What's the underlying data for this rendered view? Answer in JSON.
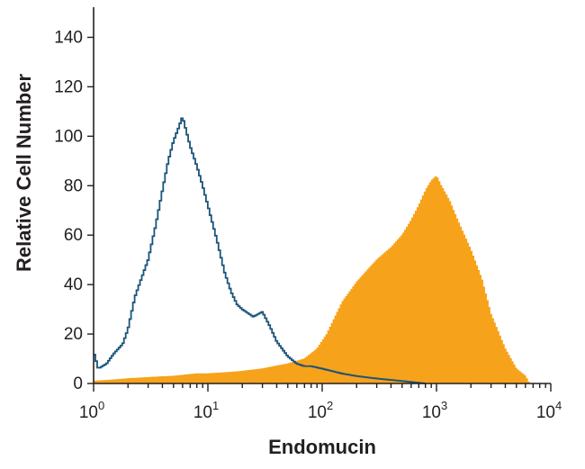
{
  "chart_data": {
    "type": "area",
    "xlabel": "Endomucin",
    "ylabel": "Relative Cell Number",
    "x_scale": "log",
    "xlim": [
      1,
      10000
    ],
    "ylim": [
      0,
      150
    ],
    "x_ticks": [
      {
        "value": 1,
        "base": "10",
        "exp": "0"
      },
      {
        "value": 10,
        "base": "10",
        "exp": "1"
      },
      {
        "value": 100,
        "base": "10",
        "exp": "2"
      },
      {
        "value": 1000,
        "base": "10",
        "exp": "3"
      },
      {
        "value": 10000,
        "base": "10",
        "exp": "4"
      }
    ],
    "y_ticks": [
      {
        "value": 0,
        "label": "0"
      },
      {
        "value": 20,
        "label": "20"
      },
      {
        "value": 40,
        "label": "40"
      },
      {
        "value": 60,
        "label": "60"
      },
      {
        "value": 80,
        "label": "80"
      },
      {
        "value": 100,
        "label": "100"
      },
      {
        "value": 120,
        "label": "120"
      },
      {
        "value": 140,
        "label": "140"
      }
    ],
    "grid": false,
    "series": [
      {
        "style": "filled",
        "color": "#f7a21b",
        "x": [
          1,
          1.5,
          2,
          3,
          5,
          8,
          10,
          15,
          20,
          30,
          50,
          70,
          90,
          110,
          130,
          150,
          180,
          200,
          250,
          300,
          400,
          500,
          600,
          700,
          800,
          900,
          1000,
          1100,
          1300,
          1500,
          2000,
          2500,
          3000,
          4000,
          5000,
          6000,
          6500
        ],
        "y": [
          1,
          1.5,
          2,
          2.5,
          3,
          4,
          4,
          4.5,
          5,
          6,
          8,
          10,
          14,
          20,
          27,
          33,
          38,
          41,
          46,
          50,
          55,
          60,
          66,
          72,
          78,
          82,
          84,
          80,
          74,
          67,
          54,
          42,
          28,
          14,
          6,
          3,
          0
        ]
      },
      {
        "style": "step-line",
        "color": "#1b5479",
        "x": [
          1,
          1.1,
          1.3,
          1.5,
          1.8,
          2,
          2.3,
          2.6,
          3,
          3.5,
          4,
          4.5,
          5,
          5.5,
          6,
          7,
          8,
          9,
          10,
          12,
          14,
          16,
          18,
          20,
          25,
          30,
          35,
          40,
          50,
          60,
          70,
          80,
          100,
          150,
          200,
          300,
          500,
          800
        ],
        "y": [
          13,
          6,
          8,
          12,
          16,
          22,
          35,
          42,
          50,
          64,
          78,
          90,
          98,
          103,
          108,
          96,
          88,
          80,
          72,
          58,
          45,
          37,
          32,
          30,
          27,
          29,
          23,
          17,
          11,
          8,
          7,
          7,
          6,
          4,
          3,
          2,
          1,
          0
        ]
      }
    ]
  }
}
